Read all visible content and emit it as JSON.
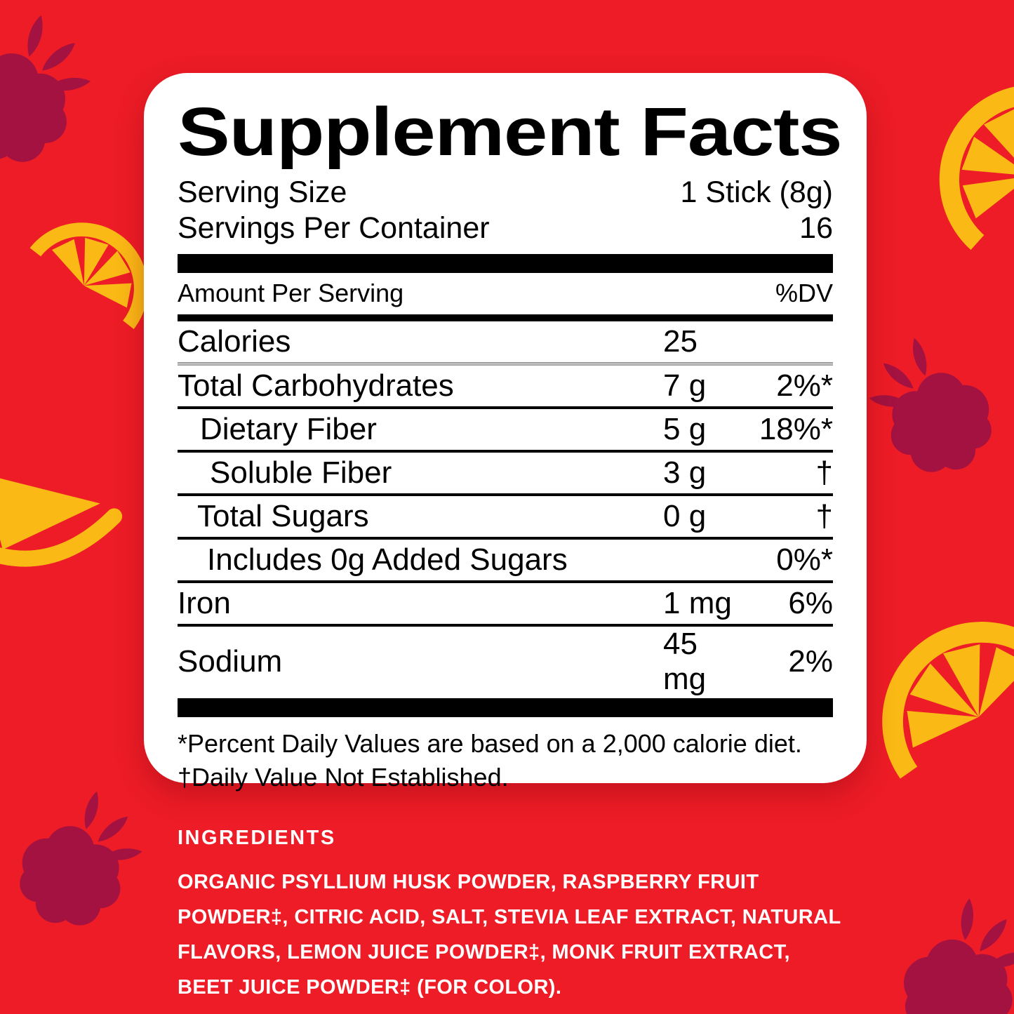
{
  "colors": {
    "background_red": "#ED1C26",
    "raspberry_maroon": "#A31240",
    "lemon_yellow": "#FBB916",
    "card_white": "#FFFFFF",
    "text_black": "#000000",
    "gray_separator": "#BDBDBD"
  },
  "panel": {
    "title": "Supplement Facts",
    "serving_rows": [
      {
        "label": "Serving Size",
        "value": "1 Stick (8g)"
      },
      {
        "label": "Servings Per Container",
        "value": "16"
      }
    ],
    "header": {
      "left": "Amount Per Serving",
      "right": "%DV"
    },
    "rows": [
      {
        "name": "Calories",
        "amount": "25",
        "dv": "",
        "indent": 0,
        "sep": "none"
      },
      {
        "name": "Total Carbohydrates",
        "amount": "7 g",
        "dv": "2%*",
        "indent": 0,
        "sep": "gray"
      },
      {
        "name": "Dietary Fiber",
        "amount": "5 g",
        "dv": "18%*",
        "indent": 32,
        "sep": "black"
      },
      {
        "name": "Soluble Fiber",
        "amount": "3 g",
        "dv": "†",
        "indent": 46,
        "sep": "black"
      },
      {
        "name": "Total Sugars",
        "amount": "0 g",
        "dv": "†",
        "indent": 28,
        "sep": "black"
      },
      {
        "name": "Includes 0g Added Sugars",
        "amount": "",
        "dv": "0%*",
        "indent": 42,
        "sep": "black"
      },
      {
        "name": "Iron",
        "amount": "1 mg",
        "dv": "6%",
        "indent": 0,
        "sep": "black"
      },
      {
        "name": "Sodium",
        "amount": "45 mg",
        "dv": "2%",
        "indent": 0,
        "sep": "black"
      }
    ],
    "footnotes": [
      "*Percent Daily Values are based on a 2,000 calorie diet.",
      "†Daily Value Not Established."
    ]
  },
  "ingredients": {
    "heading": "INGREDIENTS",
    "text": "ORGANIC PSYLLIUM HUSK POWDER, RASPBERRY FRUIT POWDER‡, CITRIC ACID, SALT, STEVIA LEAF EXTRACT, NATURAL FLAVORS, LEMON JUICE POWDER‡, MONK FRUIT EXTRACT, BEET JUICE POWDER‡ (FOR COLOR)."
  },
  "decorations": [
    "raspberry-top-left",
    "lemon-slice-top-right",
    "lemon-slice-mid-left",
    "lemon-wedge-bottom-left",
    "raspberry-mid-right",
    "lemon-slice-bottom-right",
    "raspberry-bottom-left",
    "raspberry-bottom-right"
  ]
}
